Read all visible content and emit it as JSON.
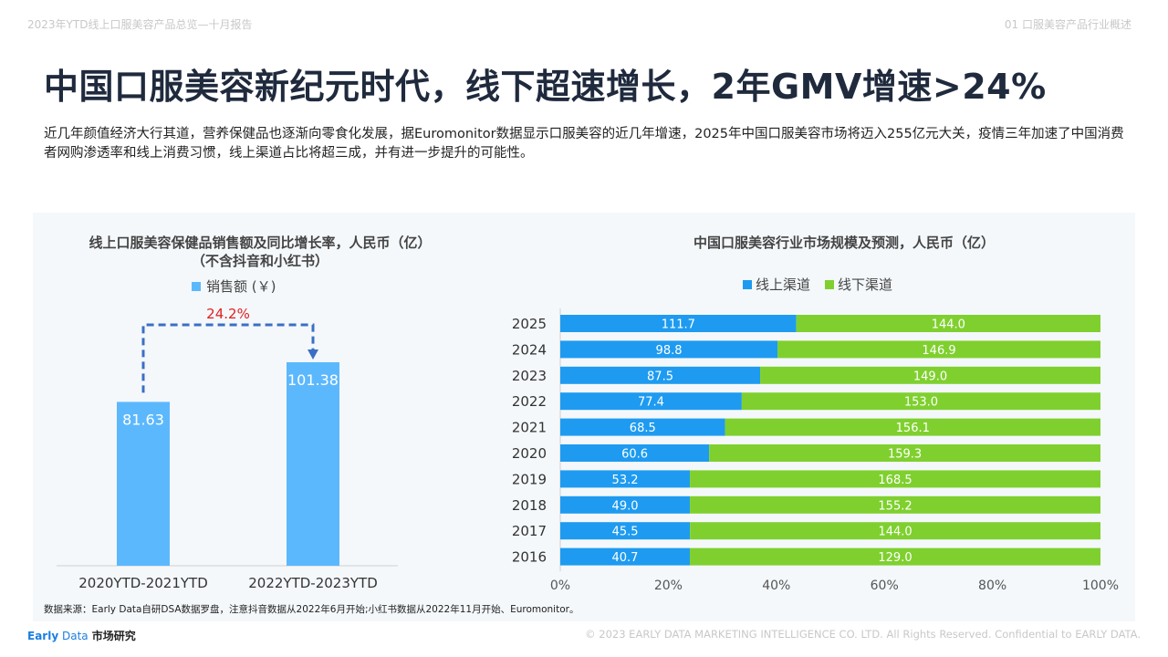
{
  "header": {
    "left": "2023年YTD线上口服美容产品总览—十月报告",
    "right": "01 口服美容产品行业概述"
  },
  "title": "中国口服美容新纪元时代，线下超速增长，2年GMV增速>24%",
  "description": "近几年颜值经济大行其道，营养保健品也逐渐向零食化发展，据Euromonitor数据显示口服美容的近几年增速，2025年中国口服美容市场将迈入255亿元大关，疫情三年加速了中国消费者网购渗透率和线上消费习惯，线上渠道占比将超三成，并有进一步提升的可能性。",
  "chart_data": [
    {
      "type": "bar",
      "title_line1": "线上口服美容保健品销售额及同比增长率，人民币（亿）",
      "title_line2": "（不含抖音和小红书）",
      "legend": "销售额 (￥)",
      "categories": [
        "2020YTD-2021YTD",
        "2022YTD-2023YTD"
      ],
      "values": [
        81.63,
        101.38
      ],
      "value_labels": [
        "81.63",
        "101.38"
      ],
      "growth_label": "24.2%",
      "ylim": [
        0,
        120
      ],
      "colors": {
        "bar": "#5cb8fd",
        "arrow": "#3b6fc4",
        "growth": "#e02020"
      }
    },
    {
      "type": "bar",
      "orientation": "horizontal",
      "stacked": "percent",
      "title": "中国口服美容行业市场规模及预测，人民币（亿）",
      "categories": [
        "2025",
        "2024",
        "2023",
        "2022",
        "2021",
        "2020",
        "2019",
        "2018",
        "2017",
        "2016"
      ],
      "series": [
        {
          "name": "线上渠道",
          "color": "#1e9bf0",
          "values": [
            111.7,
            98.8,
            87.5,
            77.4,
            68.5,
            60.6,
            53.2,
            49.0,
            45.5,
            40.7
          ],
          "labels": [
            "111.7",
            "98.8",
            "87.5",
            "77.4",
            "68.5",
            "60.6",
            "53.2",
            "49.0",
            "45.5",
            "40.7"
          ]
        },
        {
          "name": "线下渠道",
          "color": "#7fd02f",
          "values": [
            144.0,
            146.9,
            149.0,
            153.0,
            156.1,
            159.3,
            168.5,
            155.2,
            144.0,
            129.0
          ],
          "labels": [
            "144.0",
            "146.9",
            "149.0",
            "153.0",
            "156.1",
            "159.3",
            "168.5",
            "155.2",
            "144.0",
            "129.0"
          ]
        }
      ],
      "x_ticks": [
        "0%",
        "20%",
        "40%",
        "60%",
        "80%",
        "100%"
      ],
      "xlim": [
        0,
        100
      ]
    }
  ],
  "source": "数据来源：Early Data自研DSA数据罗盘，注意抖音数据从2022年6月开始;小红书数据从2022年11月开始、Euromonitor。",
  "logo": {
    "part1": "Early",
    "part2": " Data",
    "part3": " 市场研究"
  },
  "copyright": "© 2023 EARLY DATA MARKETING INTELLIGENCE CO. LTD. All Rights Reserved. Confidential to EARLY DATA."
}
